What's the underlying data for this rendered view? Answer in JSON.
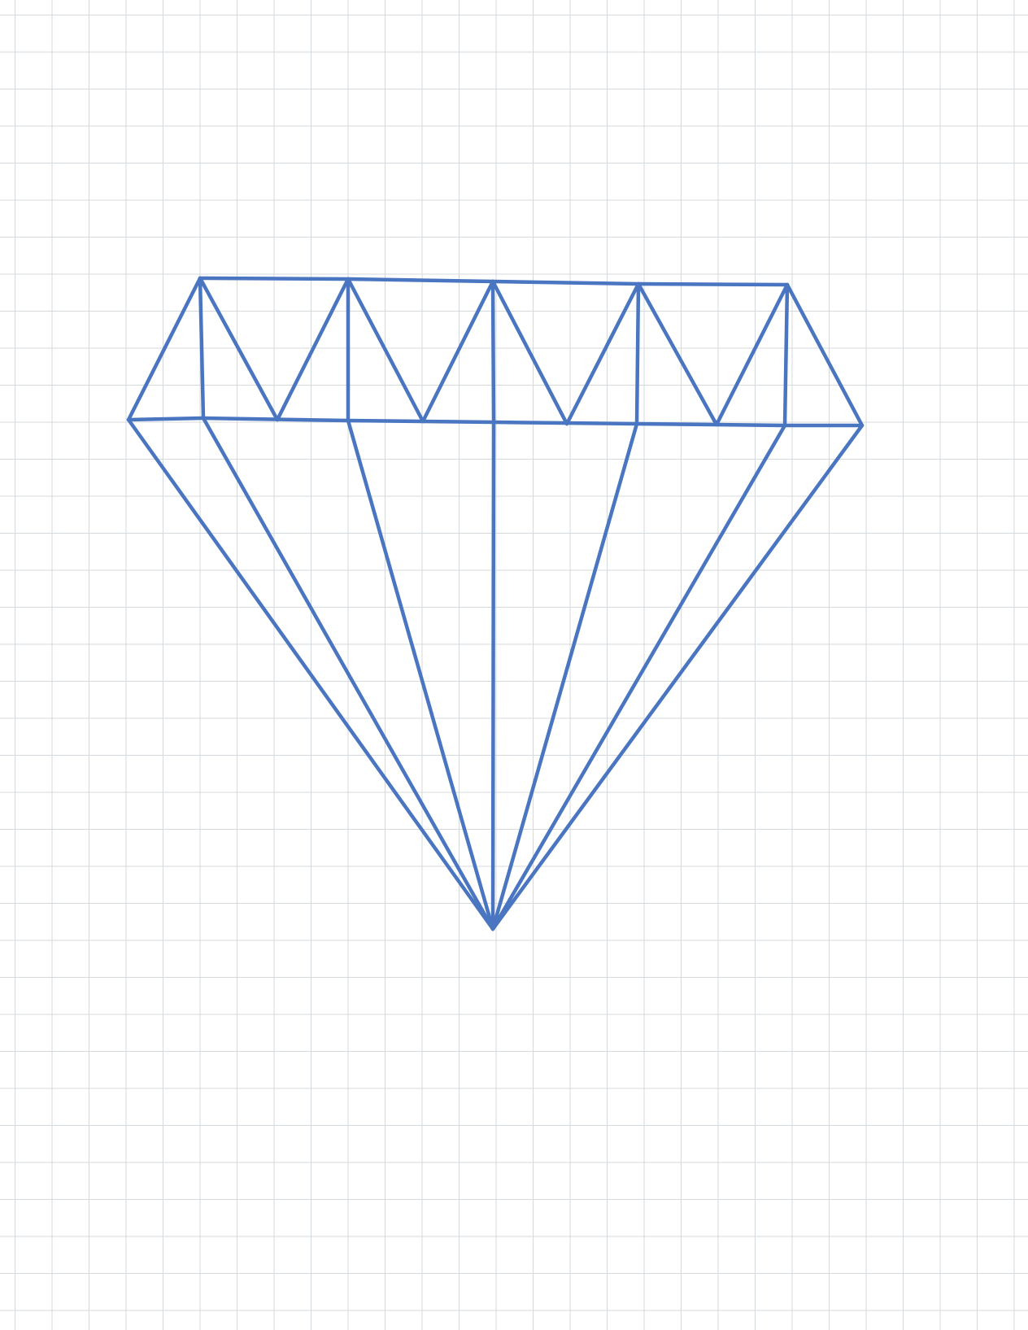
{
  "figure": {
    "subject": "diamond-outline",
    "background": "graph-paper-grid",
    "colors": {
      "stroke": "#4a76c1",
      "grid": "#d4d9de",
      "paper": "#ffffff"
    }
  }
}
